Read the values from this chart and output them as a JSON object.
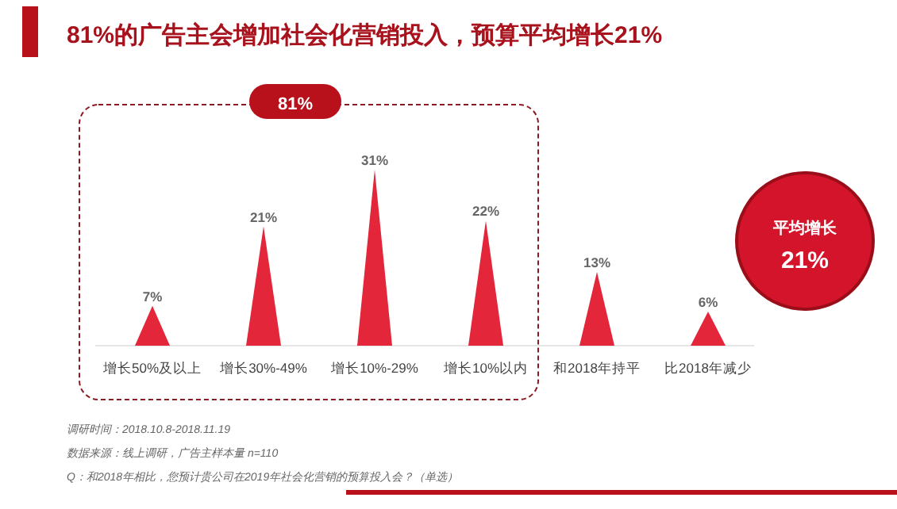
{
  "chart_data": {
    "type": "bar",
    "title": "81%的广告主会增加社会化营销投入，预算平均增长21%",
    "categories": [
      "增长50%及以上",
      "增长30%-49%",
      "增长10%-29%",
      "增长10%以内",
      "和2018年持平",
      "比2018年减少"
    ],
    "values": [
      7,
      21,
      31,
      22,
      13,
      6
    ],
    "value_labels": [
      "7%",
      "21%",
      "31%",
      "22%",
      "13%",
      "6%"
    ],
    "color": "#e3263a",
    "annotations": [
      "81%",
      "平均增长",
      "21%",
      "调研时间：2018.10.8-2018.11.19",
      "数据来源：线上调研，广告主样本量 n=110",
      "Q：和2018年相比，您预计贵公司在2019年社会化营销的预算投入会？（单选）"
    ]
  }
}
